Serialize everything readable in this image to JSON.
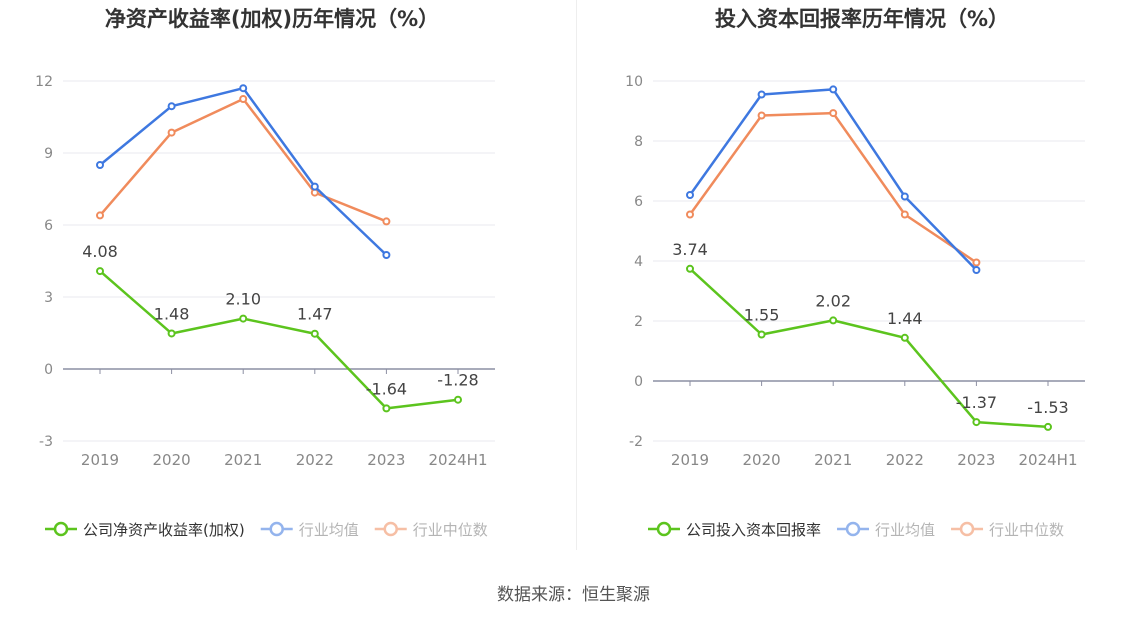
{
  "source_label": "数据来源：恒生聚源",
  "colors": {
    "company": "#5cc41e",
    "avg": "#3e78e0",
    "median": "#f08b5c",
    "grid": "#e8e9ef",
    "axis": "#8c8fa3",
    "tick": "#888888"
  },
  "chart_data": [
    {
      "type": "line",
      "title": "净资产收益率(加权)历年情况（%）",
      "categories": [
        "2019",
        "2020",
        "2021",
        "2022",
        "2023",
        "2024H1"
      ],
      "yticks": [
        -3,
        0,
        3,
        6,
        9,
        12
      ],
      "ylim": [
        -3,
        12
      ],
      "grid": true,
      "legend_position": "bottom",
      "series": [
        {
          "name": "公司净资产收益率(加权)",
          "color_key": "company",
          "values": [
            4.08,
            1.48,
            2.1,
            1.47,
            -1.64,
            -1.28
          ],
          "labels": [
            "4.08",
            "1.48",
            "2.10",
            "1.47",
            "-1.64",
            "-1.28"
          ]
        },
        {
          "name": "行业均值",
          "color_key": "avg",
          "values": [
            8.5,
            10.95,
            11.7,
            7.6,
            4.75,
            null
          ]
        },
        {
          "name": "行业中位数",
          "color_key": "median",
          "values": [
            6.4,
            9.85,
            11.25,
            7.35,
            6.15,
            null
          ]
        }
      ]
    },
    {
      "type": "line",
      "title": "投入资本回报率历年情况（%）",
      "categories": [
        "2019",
        "2020",
        "2021",
        "2022",
        "2023",
        "2024H1"
      ],
      "yticks": [
        -2,
        0,
        2,
        4,
        6,
        8,
        10
      ],
      "ylim": [
        -2,
        10
      ],
      "grid": true,
      "legend_position": "bottom",
      "series": [
        {
          "name": "公司投入资本回报率",
          "color_key": "company",
          "values": [
            3.74,
            1.55,
            2.02,
            1.44,
            -1.37,
            -1.53
          ],
          "labels": [
            "3.74",
            "1.55",
            "2.02",
            "1.44",
            "-1.37",
            "-1.53"
          ]
        },
        {
          "name": "行业均值",
          "color_key": "avg",
          "values": [
            6.2,
            9.55,
            9.72,
            6.15,
            3.7,
            null
          ]
        },
        {
          "name": "行业中位数",
          "color_key": "median",
          "values": [
            5.55,
            8.85,
            8.93,
            5.55,
            3.95,
            null
          ]
        }
      ]
    }
  ]
}
